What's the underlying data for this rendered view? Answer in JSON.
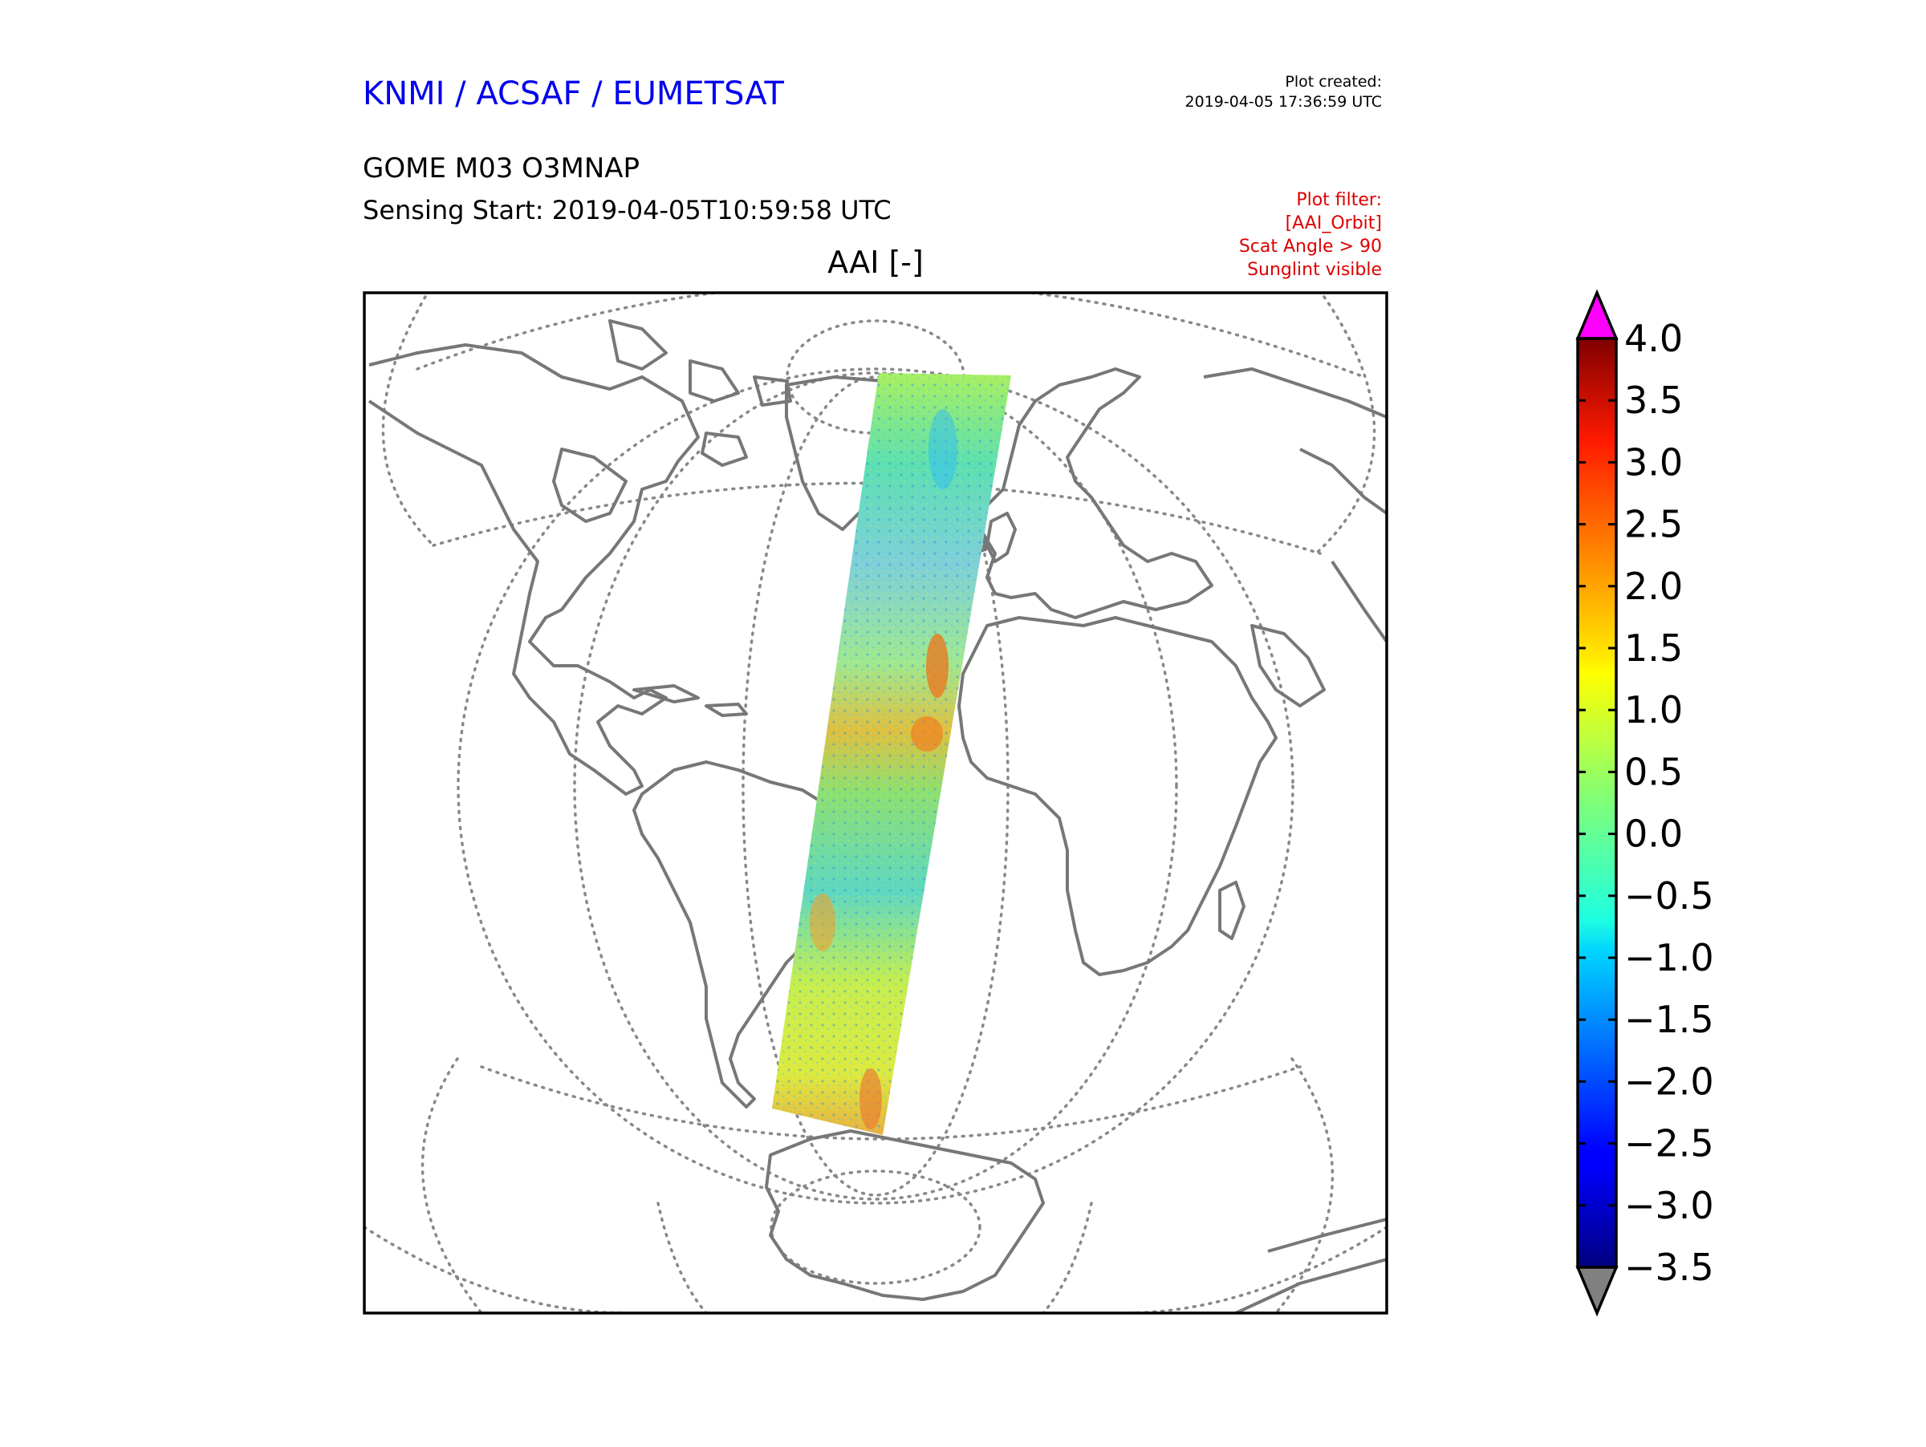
{
  "header": {
    "agency": "KNMI / ACSAF / EUMETSAT",
    "created_label": "Plot created:",
    "created_time": "2019-04-05 17:36:59 UTC",
    "product": "GOME M03 O3MNAP",
    "sensing_start": "Sensing Start: 2019-04-05T10:59:58 UTC",
    "filter_lines": [
      "Plot filter:",
      "[AAI_Orbit]",
      "Scat Angle > 90",
      "Sunglint visible"
    ]
  },
  "map": {
    "title": "AAI [-]",
    "projection": "orthographic",
    "coastline_color": "#777777",
    "graticule": "dotted"
  },
  "colorbar": {
    "colormap": "jet",
    "min": -3.5,
    "max": 4.0,
    "over_color": "#ff00ff",
    "under_color": "#808080",
    "tick_labels": [
      "4.0",
      "3.5",
      "3.0",
      "2.5",
      "2.0",
      "1.5",
      "1.0",
      "0.5",
      "0.0",
      "−0.5",
      "−1.0",
      "−1.5",
      "−2.0",
      "−2.5",
      "−3.0",
      "−3.5"
    ]
  },
  "colors": {
    "agency": "#0000ee",
    "filter": "#dd0000",
    "text": "#000000"
  }
}
